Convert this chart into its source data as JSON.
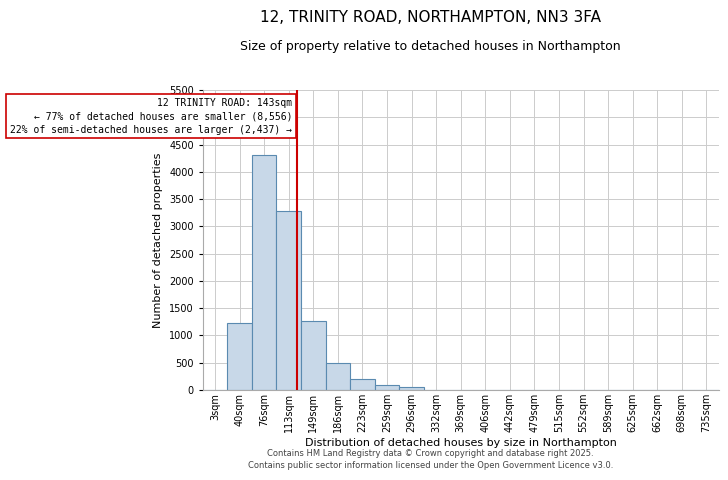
{
  "title_line1": "12, TRINITY ROAD, NORTHAMPTON, NN3 3FA",
  "title_line2": "Size of property relative to detached houses in Northampton",
  "xlabel": "Distribution of detached houses by size in Northampton",
  "ylabel": "Number of detached properties",
  "categories": [
    "3sqm",
    "40sqm",
    "76sqm",
    "113sqm",
    "149sqm",
    "186sqm",
    "223sqm",
    "259sqm",
    "296sqm",
    "332sqm",
    "369sqm",
    "406sqm",
    "442sqm",
    "479sqm",
    "515sqm",
    "552sqm",
    "589sqm",
    "625sqm",
    "662sqm",
    "698sqm",
    "735sqm"
  ],
  "bar_values": [
    0,
    1220,
    4300,
    3280,
    1260,
    490,
    200,
    95,
    55,
    0,
    0,
    0,
    0,
    0,
    0,
    0,
    0,
    0,
    0,
    0,
    0
  ],
  "bar_color": "#c8d8e8",
  "bar_edge_color": "#5a8ab0",
  "vline_color": "#cc0000",
  "ylim": [
    0,
    5500
  ],
  "yticks": [
    0,
    500,
    1000,
    1500,
    2000,
    2500,
    3000,
    3500,
    4000,
    4500,
    5000,
    5500
  ],
  "annotation_text": "12 TRINITY ROAD: 143sqm\n← 77% of detached houses are smaller (8,556)\n22% of semi-detached houses are larger (2,437) →",
  "annotation_box_color": "#ffffff",
  "annotation_box_edge": "#cc0000",
  "footer_line1": "Contains HM Land Registry data © Crown copyright and database right 2025.",
  "footer_line2": "Contains public sector information licensed under the Open Government Licence v3.0.",
  "background_color": "#ffffff",
  "grid_color": "#cccccc",
  "title1_fontsize": 11,
  "title2_fontsize": 9,
  "ylabel_fontsize": 8,
  "xlabel_fontsize": 8,
  "tick_fontsize": 7,
  "footer_fontsize": 6,
  "annotation_fontsize": 7
}
